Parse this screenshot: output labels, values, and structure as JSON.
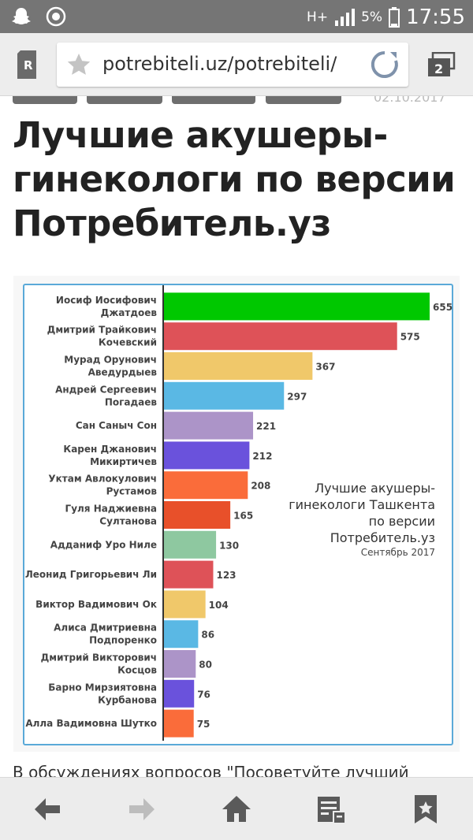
{
  "status_bar": {
    "network": "H+",
    "battery": "5%",
    "time": "17:55"
  },
  "browser": {
    "url": "potrebiteli.uz/potrebiteli/",
    "tab_count": "2"
  },
  "article": {
    "title": "Лучшие акушеры-гинекологи по версии Потребитель.уз",
    "date_cut": "02.10.2017",
    "body_cut": "В обсуждениях вопросов \"Посоветуйте лучший"
  },
  "colors": {
    "accent": "#5aa9d8",
    "status_bar": "#757575"
  },
  "chart_data": {
    "type": "bar",
    "orientation": "horizontal",
    "annotation": [
      "Лучшие акушеры-",
      "гинекологи Ташкента",
      "по версии",
      "Потребитель.уз"
    ],
    "annotation_sub": "Сентябрь 2017",
    "categories": [
      [
        "Иосиф Иосифович",
        "Джатдоев"
      ],
      [
        "Дмитрий Трайкович",
        "Кочевский"
      ],
      [
        "Мурад Орунович",
        "Аведурдыев"
      ],
      [
        "Андрей Сергеевич",
        "Погадаев"
      ],
      [
        "Сан Саныч Сон"
      ],
      [
        "Карен Джанович",
        "Микиртичев"
      ],
      [
        "Уктам Авлокулович",
        "Рустамов"
      ],
      [
        "Гуля Наджиевна",
        "Султанова"
      ],
      [
        "Адданиф Уро Ниле"
      ],
      [
        "Леонид Григорьевич Ли"
      ],
      [
        "Виктор Вадимович Ок"
      ],
      [
        "Алиса Дмитриевна",
        "Подпоренко"
      ],
      [
        "Дмитрий Викторович",
        "Косцов"
      ],
      [
        "Барно Мирзиятовна",
        "Курбанова"
      ],
      [
        "Алла Вадимовна Шутко"
      ]
    ],
    "values": [
      655,
      575,
      367,
      297,
      221,
      212,
      208,
      165,
      130,
      123,
      104,
      86,
      80,
      76,
      75
    ],
    "bar_colors": [
      "#00c800",
      "#de5258",
      "#f0c86a",
      "#5ab8e4",
      "#ac94c8",
      "#6a52dc",
      "#fa6c3a",
      "#e8502a",
      "#8ec8a0",
      "#de5258",
      "#f0c86a",
      "#5ab8e4",
      "#ac94c8",
      "#6a52dc",
      "#fa6c3a"
    ],
    "xlim": [
      0,
      655
    ]
  }
}
